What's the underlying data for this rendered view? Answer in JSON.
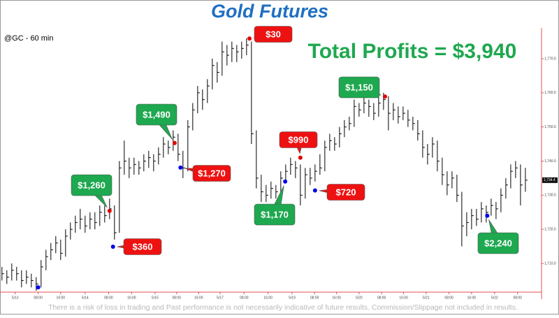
{
  "chart_data": {
    "type": "ohlc",
    "title": "Gold Futures",
    "subtitle": "@GC - 60 min",
    "headline": "Total Profits = $3,940",
    "disclaimer": "There is a risk of loss in trading and Past performance is not necessarily indicative of future results. Commission/Slippage not included in results.",
    "bar_color": "#000000",
    "axis_color": "#e05050",
    "high": [
      1709,
      1708,
      1710,
      1709,
      1708,
      1708,
      1707,
      1706,
      1711,
      1714,
      1716,
      1718,
      1717,
      1720,
      1722,
      1724,
      1726,
      1724,
      1725,
      1725,
      1727,
      1727,
      1729,
      1727,
      1740,
      1746,
      1741,
      1741,
      1740,
      1742,
      1743,
      1742,
      1744,
      1747,
      1746,
      1749,
      1748,
      1743,
      1752,
      1757,
      1762,
      1761,
      1764,
      1770,
      1769,
      1775,
      1774,
      1775,
      1774,
      1775,
      1776,
      1775,
      1749,
      1736,
      1733,
      1734,
      1733,
      1737,
      1739,
      1741,
      1740,
      1739,
      1738,
      1738,
      1739,
      1742,
      1746,
      1748,
      1747,
      1750,
      1752,
      1753,
      1758,
      1757,
      1759,
      1758,
      1757,
      1759,
      1760,
      1759,
      1757,
      1756,
      1756,
      1755,
      1753,
      1752,
      1749,
      1745,
      1747,
      1746,
      1741,
      1737,
      1737,
      1736,
      1731,
      1725,
      1726,
      1726,
      1728,
      1727,
      1729,
      1728,
      1732,
      1735,
      1739,
      1740,
      1739,
      1738
    ],
    "low": [
      1705,
      1704,
      1705,
      1705,
      1703,
      1704,
      1703,
      1702,
      1703,
      1708,
      1711,
      1713,
      1711,
      1712,
      1717,
      1719,
      1720,
      1719,
      1720,
      1720,
      1721,
      1722,
      1723,
      1717,
      1719,
      1736,
      1735,
      1736,
      1736,
      1737,
      1738,
      1737,
      1739,
      1741,
      1742,
      1743,
      1740,
      1735,
      1737,
      1749,
      1754,
      1755,
      1757,
      1761,
      1763,
      1765,
      1768,
      1769,
      1769,
      1770,
      1771,
      1745,
      1732,
      1728,
      1728,
      1729,
      1729,
      1730,
      1734,
      1736,
      1735,
      1727,
      1729,
      1733,
      1734,
      1736,
      1737,
      1743,
      1743,
      1744,
      1747,
      1749,
      1750,
      1753,
      1754,
      1753,
      1752,
      1753,
      1755,
      1749,
      1752,
      1751,
      1752,
      1750,
      1749,
      1746,
      1741,
      1739,
      1741,
      1737,
      1733,
      1730,
      1732,
      1728,
      1715,
      1718,
      1720,
      1721,
      1722,
      1722,
      1724,
      1723,
      1725,
      1729,
      1732,
      1735,
      1727,
      1731
    ],
    "close": [
      1707,
      1706,
      1708,
      1707,
      1705,
      1706,
      1705,
      1704,
      1709,
      1712,
      1714,
      1716,
      1713,
      1718,
      1720,
      1722,
      1723,
      1721,
      1723,
      1722,
      1725,
      1724,
      1726,
      1719,
      1738,
      1740,
      1738,
      1739,
      1738,
      1740,
      1741,
      1740,
      1742,
      1745,
      1744,
      1747,
      1742,
      1738,
      1750,
      1755,
      1760,
      1758,
      1762,
      1768,
      1766,
      1772,
      1771,
      1773,
      1772,
      1773,
      1774,
      1748,
      1735,
      1731,
      1730,
      1732,
      1731,
      1735,
      1737,
      1739,
      1738,
      1730,
      1736,
      1735,
      1737,
      1738,
      1744,
      1746,
      1745,
      1748,
      1750,
      1751,
      1756,
      1755,
      1757,
      1756,
      1754,
      1757,
      1758,
      1754,
      1755,
      1753,
      1754,
      1752,
      1751,
      1748,
      1744,
      1742,
      1745,
      1740,
      1736,
      1733,
      1735,
      1730,
      1721,
      1722,
      1724,
      1723,
      1726,
      1725,
      1727,
      1726,
      1730,
      1733,
      1737,
      1738,
      1733,
      1734.4
    ],
    "last_price": {
      "value": 1734.4,
      "label": "1,734.4"
    },
    "xlim": [
      -0.4,
      110.3
    ],
    "ylim": [
      1701.6,
      1779
    ],
    "yticks": [
      {
        "value": 1710,
        "label": "1,710.0"
      },
      {
        "value": 1720,
        "label": "1,720.0"
      },
      {
        "value": 1730,
        "label": "1,730.0"
      },
      {
        "value": 1740,
        "label": "1,740.0"
      },
      {
        "value": 1750,
        "label": "1,750.0"
      },
      {
        "value": 1760,
        "label": "1,760.0"
      },
      {
        "value": 1770,
        "label": "1,770.0"
      }
    ],
    "xticks": [
      {
        "value": 2.7,
        "label": "5/13"
      },
      {
        "value": 7.4,
        "label": "08:00"
      },
      {
        "value": 12,
        "label": "16:00"
      },
      {
        "value": 17,
        "label": "5/14"
      },
      {
        "value": 21.8,
        "label": "08:00"
      },
      {
        "value": 26.5,
        "label": "16:00"
      },
      {
        "value": 31.3,
        "label": "5/15"
      },
      {
        "value": 35.7,
        "label": "08:00"
      },
      {
        "value": 40.2,
        "label": "16:00"
      },
      {
        "value": 44.6,
        "label": "5/17"
      },
      {
        "value": 49.5,
        "label": "08:00"
      },
      {
        "value": 54.4,
        "label": "16:00"
      },
      {
        "value": 59.3,
        "label": "5/19"
      },
      {
        "value": 63.9,
        "label": "08:00"
      },
      {
        "value": 68.4,
        "label": "16:00"
      },
      {
        "value": 73,
        "label": "5/20"
      },
      {
        "value": 77.6,
        "label": "08:00"
      },
      {
        "value": 82.1,
        "label": "16:00"
      },
      {
        "value": 86.7,
        "label": "5/21"
      },
      {
        "value": 91.4,
        "label": "08:00"
      },
      {
        "value": 96,
        "label": "16:00"
      },
      {
        "value": 100.7,
        "label": "5/22"
      },
      {
        "value": 105.4,
        "label": "08:00"
      }
    ],
    "trades": [
      {
        "index": 7.4,
        "price": 1703,
        "color": "#0000ee"
      },
      {
        "index": 22,
        "price": 1725.4,
        "color": "#e00000",
        "label": "$1,260",
        "label_color": "#1ea84f"
      },
      {
        "index": 22.7,
        "price": 1714.9,
        "color": "#0000ee",
        "label": "$360",
        "label_color": "#ee1111"
      },
      {
        "index": 35.3,
        "price": 1745.3,
        "color": "#e00000",
        "label": "$1,490",
        "label_color": "#1ea84f"
      },
      {
        "index": 36.5,
        "price": 1738.1,
        "color": "#0000ee",
        "label": "$1,270",
        "label_color": "#ee1111"
      },
      {
        "index": 50.6,
        "price": 1775.9,
        "color": "#e00000",
        "label": "$30",
        "label_color": "#ee1111"
      },
      {
        "index": 57.9,
        "price": 1734,
        "color": "#0000ee",
        "label": "$1,170",
        "label_color": "#1ea84f"
      },
      {
        "index": 61,
        "price": 1741,
        "color": "#e00000",
        "label": "$990",
        "label_color": "#ee1111"
      },
      {
        "index": 64,
        "price": 1731.4,
        "color": "#0000ee",
        "label": "$720",
        "label_color": "#ee1111"
      },
      {
        "index": 78.3,
        "price": 1758.9,
        "color": "#e00000",
        "label": "$1,150",
        "label_color": "#1ea84f"
      },
      {
        "index": 99.2,
        "price": 1724,
        "color": "#0000ee",
        "label": "$2,240",
        "label_color": "#1ea84f"
      }
    ]
  }
}
